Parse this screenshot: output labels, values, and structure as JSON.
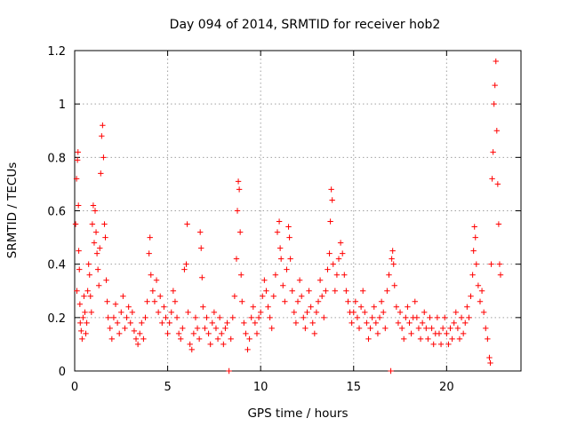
{
  "chart_data": {
    "type": "scatter",
    "title": "Day 094 of 2014, SRMTID for receiver hob2",
    "xlabel": "GPS time / hours",
    "ylabel": "SRMTID / TECUs",
    "xlim": [
      0,
      24
    ],
    "ylim": [
      0,
      1.2
    ],
    "xticks": [
      0,
      5,
      10,
      15,
      20
    ],
    "xtick_labels": [
      "0",
      "5",
      "10",
      "15",
      "20"
    ],
    "yticks": [
      0,
      0.2,
      0.4,
      0.6,
      0.8,
      1,
      1.2
    ],
    "ytick_labels": [
      "0",
      "0.2",
      "0.4",
      "0.6",
      "0.8",
      "1",
      "1.2"
    ],
    "grid": true,
    "marker": "+",
    "series_color": "#ff0000",
    "grid_color": "#a0a0a0",
    "series": [
      {
        "name": "SRMTID",
        "points": [
          [
            0.05,
            0.55
          ],
          [
            0.1,
            0.72
          ],
          [
            0.12,
            0.3
          ],
          [
            0.15,
            0.79
          ],
          [
            0.18,
            0.82
          ],
          [
            0.2,
            0.62
          ],
          [
            0.22,
            0.45
          ],
          [
            0.25,
            0.38
          ],
          [
            0.28,
            0.25
          ],
          [
            0.3,
            0.18
          ],
          [
            0.35,
            0.15
          ],
          [
            0.4,
            0.12
          ],
          [
            0.45,
            0.2
          ],
          [
            0.5,
            0.28
          ],
          [
            0.55,
            0.22
          ],
          [
            0.6,
            0.14
          ],
          [
            0.65,
            0.18
          ],
          [
            0.7,
            0.3
          ],
          [
            0.75,
            0.4
          ],
          [
            0.8,
            0.36
          ],
          [
            0.85,
            0.28
          ],
          [
            0.9,
            0.22
          ],
          [
            0.95,
            0.55
          ],
          [
            1.0,
            0.62
          ],
          [
            1.05,
            0.48
          ],
          [
            1.1,
            0.6
          ],
          [
            1.15,
            0.52
          ],
          [
            1.2,
            0.44
          ],
          [
            1.25,
            0.38
          ],
          [
            1.3,
            0.32
          ],
          [
            1.35,
            0.46
          ],
          [
            1.4,
            0.74
          ],
          [
            1.45,
            0.88
          ],
          [
            1.5,
            0.92
          ],
          [
            1.55,
            0.8
          ],
          [
            1.6,
            0.55
          ],
          [
            1.65,
            0.5
          ],
          [
            1.7,
            0.34
          ],
          [
            1.75,
            0.26
          ],
          [
            1.8,
            0.2
          ],
          [
            1.9,
            0.16
          ],
          [
            2.0,
            0.12
          ],
          [
            2.1,
            0.2
          ],
          [
            2.2,
            0.25
          ],
          [
            2.3,
            0.18
          ],
          [
            2.4,
            0.14
          ],
          [
            2.5,
            0.22
          ],
          [
            2.6,
            0.28
          ],
          [
            2.7,
            0.16
          ],
          [
            2.8,
            0.2
          ],
          [
            2.9,
            0.24
          ],
          [
            3.0,
            0.18
          ],
          [
            3.1,
            0.22
          ],
          [
            3.2,
            0.15
          ],
          [
            3.3,
            0.12
          ],
          [
            3.4,
            0.1
          ],
          [
            3.5,
            0.14
          ],
          [
            3.6,
            0.18
          ],
          [
            3.7,
            0.12
          ],
          [
            3.8,
            0.2
          ],
          [
            3.9,
            0.26
          ],
          [
            4.0,
            0.44
          ],
          [
            4.05,
            0.5
          ],
          [
            4.1,
            0.36
          ],
          [
            4.2,
            0.3
          ],
          [
            4.3,
            0.26
          ],
          [
            4.4,
            0.34
          ],
          [
            4.5,
            0.22
          ],
          [
            4.6,
            0.28
          ],
          [
            4.7,
            0.18
          ],
          [
            4.8,
            0.24
          ],
          [
            4.9,
            0.2
          ],
          [
            5.0,
            0.14
          ],
          [
            5.1,
            0.18
          ],
          [
            5.2,
            0.22
          ],
          [
            5.3,
            0.3
          ],
          [
            5.4,
            0.26
          ],
          [
            5.5,
            0.2
          ],
          [
            5.6,
            0.14
          ],
          [
            5.7,
            0.12
          ],
          [
            5.8,
            0.16
          ],
          [
            5.9,
            0.38
          ],
          [
            6.0,
            0.4
          ],
          [
            6.05,
            0.55
          ],
          [
            6.1,
            0.22
          ],
          [
            6.2,
            0.1
          ],
          [
            6.3,
            0.08
          ],
          [
            6.4,
            0.14
          ],
          [
            6.5,
            0.2
          ],
          [
            6.6,
            0.16
          ],
          [
            6.7,
            0.12
          ],
          [
            6.75,
            0.52
          ],
          [
            6.8,
            0.46
          ],
          [
            6.85,
            0.35
          ],
          [
            6.9,
            0.24
          ],
          [
            7.0,
            0.16
          ],
          [
            7.1,
            0.2
          ],
          [
            7.2,
            0.14
          ],
          [
            7.3,
            0.1
          ],
          [
            7.4,
            0.18
          ],
          [
            7.5,
            0.22
          ],
          [
            7.6,
            0.16
          ],
          [
            7.7,
            0.12
          ],
          [
            7.8,
            0.2
          ],
          [
            7.9,
            0.14
          ],
          [
            8.0,
            0.1
          ],
          [
            8.1,
            0.16
          ],
          [
            8.2,
            0.18
          ],
          [
            8.3,
            0.0
          ],
          [
            8.4,
            0.12
          ],
          [
            8.5,
            0.2
          ],
          [
            8.6,
            0.28
          ],
          [
            8.7,
            0.42
          ],
          [
            8.75,
            0.6
          ],
          [
            8.8,
            0.71
          ],
          [
            8.85,
            0.68
          ],
          [
            8.9,
            0.52
          ],
          [
            8.95,
            0.36
          ],
          [
            9.0,
            0.26
          ],
          [
            9.1,
            0.18
          ],
          [
            9.2,
            0.14
          ],
          [
            9.3,
            0.08
          ],
          [
            9.4,
            0.12
          ],
          [
            9.5,
            0.2
          ],
          [
            9.6,
            0.24
          ],
          [
            9.7,
            0.18
          ],
          [
            9.8,
            0.14
          ],
          [
            9.9,
            0.2
          ],
          [
            10.0,
            0.22
          ],
          [
            10.1,
            0.28
          ],
          [
            10.2,
            0.34
          ],
          [
            10.3,
            0.3
          ],
          [
            10.4,
            0.24
          ],
          [
            10.5,
            0.2
          ],
          [
            10.6,
            0.16
          ],
          [
            10.7,
            0.28
          ],
          [
            10.8,
            0.36
          ],
          [
            10.9,
            0.52
          ],
          [
            11.0,
            0.56
          ],
          [
            11.05,
            0.46
          ],
          [
            11.1,
            0.42
          ],
          [
            11.2,
            0.32
          ],
          [
            11.3,
            0.26
          ],
          [
            11.4,
            0.38
          ],
          [
            11.5,
            0.54
          ],
          [
            11.55,
            0.5
          ],
          [
            11.6,
            0.42
          ],
          [
            11.7,
            0.3
          ],
          [
            11.8,
            0.22
          ],
          [
            11.9,
            0.18
          ],
          [
            12.0,
            0.26
          ],
          [
            12.1,
            0.34
          ],
          [
            12.2,
            0.28
          ],
          [
            12.3,
            0.2
          ],
          [
            12.4,
            0.16
          ],
          [
            12.5,
            0.22
          ],
          [
            12.6,
            0.3
          ],
          [
            12.7,
            0.24
          ],
          [
            12.8,
            0.18
          ],
          [
            12.9,
            0.14
          ],
          [
            13.0,
            0.22
          ],
          [
            13.1,
            0.26
          ],
          [
            13.2,
            0.34
          ],
          [
            13.3,
            0.28
          ],
          [
            13.4,
            0.2
          ],
          [
            13.5,
            0.3
          ],
          [
            13.6,
            0.38
          ],
          [
            13.7,
            0.44
          ],
          [
            13.75,
            0.56
          ],
          [
            13.8,
            0.68
          ],
          [
            13.85,
            0.64
          ],
          [
            13.9,
            0.4
          ],
          [
            14.0,
            0.3
          ],
          [
            14.1,
            0.36
          ],
          [
            14.2,
            0.42
          ],
          [
            14.3,
            0.48
          ],
          [
            14.4,
            0.44
          ],
          [
            14.5,
            0.36
          ],
          [
            14.6,
            0.3
          ],
          [
            14.7,
            0.26
          ],
          [
            14.8,
            0.22
          ],
          [
            14.9,
            0.18
          ],
          [
            15.0,
            0.22
          ],
          [
            15.1,
            0.26
          ],
          [
            15.2,
            0.2
          ],
          [
            15.3,
            0.16
          ],
          [
            15.4,
            0.24
          ],
          [
            15.5,
            0.3
          ],
          [
            15.6,
            0.22
          ],
          [
            15.7,
            0.18
          ],
          [
            15.8,
            0.12
          ],
          [
            15.9,
            0.16
          ],
          [
            16.0,
            0.2
          ],
          [
            16.1,
            0.24
          ],
          [
            16.2,
            0.18
          ],
          [
            16.3,
            0.14
          ],
          [
            16.4,
            0.2
          ],
          [
            16.5,
            0.26
          ],
          [
            16.6,
            0.22
          ],
          [
            16.7,
            0.16
          ],
          [
            16.8,
            0.3
          ],
          [
            16.9,
            0.36
          ],
          [
            17.0,
            0.0
          ],
          [
            17.05,
            0.42
          ],
          [
            17.1,
            0.45
          ],
          [
            17.15,
            0.4
          ],
          [
            17.2,
            0.32
          ],
          [
            17.3,
            0.24
          ],
          [
            17.4,
            0.18
          ],
          [
            17.5,
            0.22
          ],
          [
            17.6,
            0.16
          ],
          [
            17.7,
            0.12
          ],
          [
            17.8,
            0.2
          ],
          [
            17.9,
            0.24
          ],
          [
            18.0,
            0.18
          ],
          [
            18.1,
            0.14
          ],
          [
            18.2,
            0.2
          ],
          [
            18.3,
            0.26
          ],
          [
            18.4,
            0.2
          ],
          [
            18.5,
            0.16
          ],
          [
            18.6,
            0.12
          ],
          [
            18.7,
            0.18
          ],
          [
            18.8,
            0.22
          ],
          [
            18.9,
            0.16
          ],
          [
            19.0,
            0.12
          ],
          [
            19.1,
            0.2
          ],
          [
            19.2,
            0.16
          ],
          [
            19.3,
            0.1
          ],
          [
            19.4,
            0.14
          ],
          [
            19.5,
            0.2
          ],
          [
            19.6,
            0.14
          ],
          [
            19.7,
            0.1
          ],
          [
            19.8,
            0.16
          ],
          [
            19.9,
            0.2
          ],
          [
            20.0,
            0.14
          ],
          [
            20.1,
            0.1
          ],
          [
            20.2,
            0.16
          ],
          [
            20.3,
            0.12
          ],
          [
            20.4,
            0.18
          ],
          [
            20.5,
            0.22
          ],
          [
            20.6,
            0.16
          ],
          [
            20.7,
            0.12
          ],
          [
            20.8,
            0.2
          ],
          [
            20.9,
            0.14
          ],
          [
            21.0,
            0.18
          ],
          [
            21.1,
            0.24
          ],
          [
            21.2,
            0.2
          ],
          [
            21.3,
            0.28
          ],
          [
            21.4,
            0.36
          ],
          [
            21.45,
            0.45
          ],
          [
            21.5,
            0.54
          ],
          [
            21.55,
            0.5
          ],
          [
            21.6,
            0.4
          ],
          [
            21.7,
            0.32
          ],
          [
            21.8,
            0.26
          ],
          [
            21.9,
            0.3
          ],
          [
            22.0,
            0.22
          ],
          [
            22.1,
            0.16
          ],
          [
            22.2,
            0.12
          ],
          [
            22.3,
            0.05
          ],
          [
            22.35,
            0.03
          ],
          [
            22.4,
            0.4
          ],
          [
            22.45,
            0.72
          ],
          [
            22.5,
            0.82
          ],
          [
            22.55,
            1.0
          ],
          [
            22.6,
            1.07
          ],
          [
            22.65,
            1.16
          ],
          [
            22.7,
            0.9
          ],
          [
            22.75,
            0.7
          ],
          [
            22.8,
            0.55
          ],
          [
            22.85,
            0.4
          ],
          [
            22.9,
            0.36
          ]
        ]
      }
    ]
  }
}
